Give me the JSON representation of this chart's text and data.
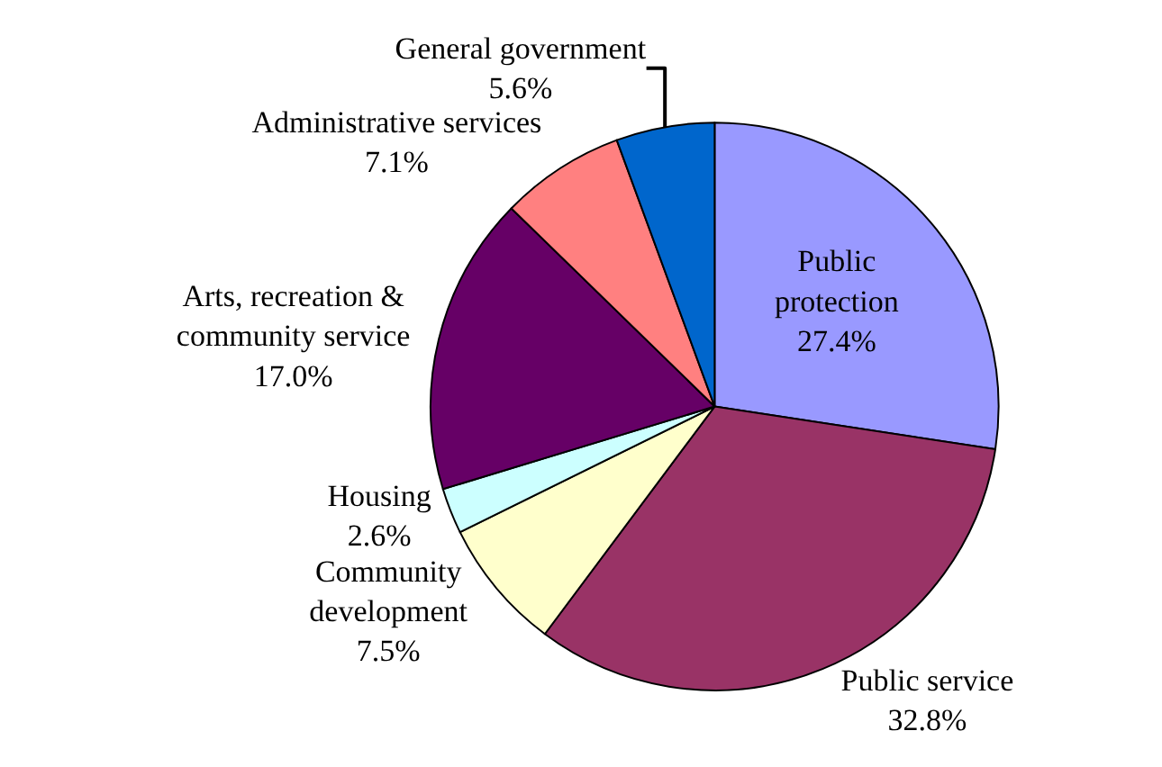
{
  "chart_data": {
    "type": "pie",
    "categories": [
      "Public\nprotection",
      "Public service",
      "Community\ndevelopment",
      "Housing",
      "Arts, recreation &\ncommunity service",
      "Administrative services",
      "General government"
    ],
    "values": [
      27.4,
      32.8,
      7.5,
      2.6,
      17.0,
      7.1,
      5.6
    ],
    "value_labels": [
      "27.4%",
      "32.8%",
      "7.5%",
      "2.6%",
      "17.0%",
      "7.1%",
      "5.6%"
    ],
    "colors": [
      "#9999ff",
      "#993366",
      "#ffffcc",
      "#ccffff",
      "#660066",
      "#ff8080",
      "#0066cc"
    ],
    "legend": false
  }
}
